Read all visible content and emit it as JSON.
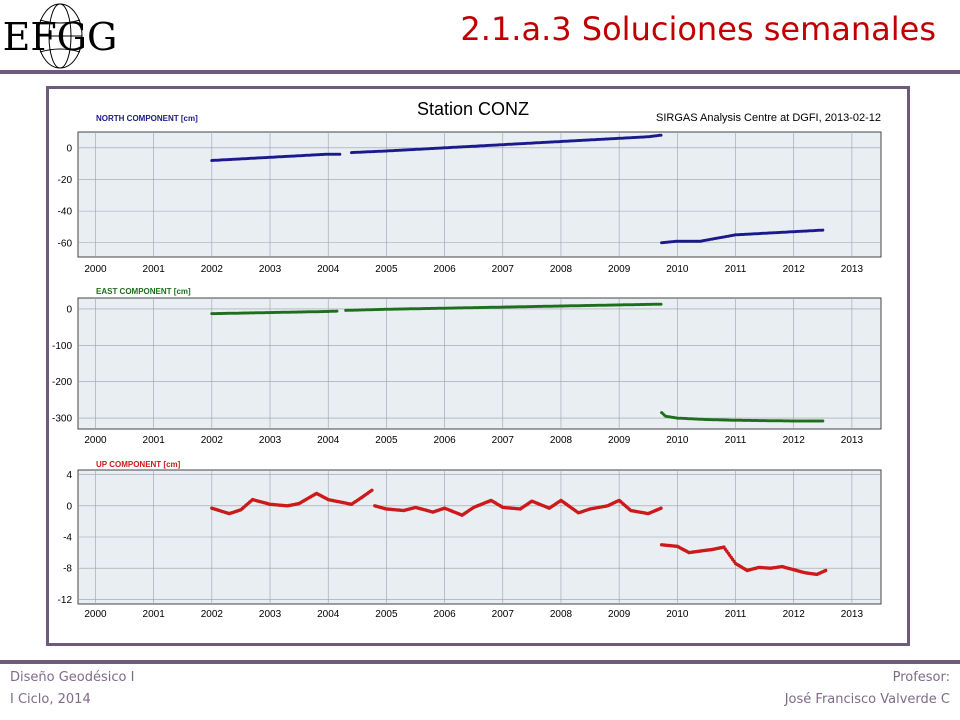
{
  "slide": {
    "title": "2.1.a.3 Soluciones semanales",
    "logo_text": "EFGG",
    "footer_left": [
      "Diseño Geodésico I",
      "I Ciclo, 2014"
    ],
    "footer_right": [
      "Profesor:",
      "José Francisco Valverde C"
    ],
    "colors": {
      "title": "#c00000",
      "rule": "#6e5a7a",
      "footer": "#7f6a8a"
    }
  },
  "chart_data": {
    "title": "Station CONZ",
    "subtitle": "SIRGAS Analysis Centre at DGFI, 2013-02-12",
    "grid": true,
    "panels": [
      {
        "type": "scatter",
        "label": "NORTH COMPONENT [cm]",
        "color": "#1a1a8c",
        "xlim": [
          1999.7,
          2013.5
        ],
        "ylim": [
          -69,
          10
        ],
        "yticks": [
          0,
          -20,
          -40,
          -60
        ],
        "xticks": [
          2000,
          2001,
          2002,
          2003,
          2004,
          2005,
          2006,
          2007,
          2008,
          2009,
          2010,
          2011,
          2012,
          2013
        ],
        "segments": [
          {
            "x": [
              2002.0,
              2002.5,
              2003.0,
              2003.5,
              2004.0,
              2004.2
            ],
            "y": [
              -8,
              -7,
              -6,
              -5,
              -4,
              -4
            ]
          },
          {
            "x": [
              2004.4,
              2005.0,
              2005.5,
              2006.0,
              2006.5,
              2007.0,
              2007.5,
              2008.0,
              2008.5,
              2009.0,
              2009.5,
              2009.72
            ],
            "y": [
              -3,
              -2,
              -1,
              0,
              1,
              2,
              3,
              4,
              5,
              6,
              7,
              8
            ]
          },
          {
            "x": [
              2009.73,
              2010.0,
              2010.4,
              2010.7,
              2011.0,
              2011.5,
              2012.0,
              2012.5
            ],
            "y": [
              -60,
              -59,
              -59,
              -57,
              -55,
              -54,
              -53,
              -52
            ]
          }
        ]
      },
      {
        "type": "scatter",
        "label": "EAST COMPONENT [cm]",
        "color": "#1e6e1e",
        "xlim": [
          1999.7,
          2013.5
        ],
        "ylim": [
          -330,
          30
        ],
        "yticks": [
          0,
          -100,
          -200,
          -300
        ],
        "xticks": [
          2000,
          2001,
          2002,
          2003,
          2004,
          2005,
          2006,
          2007,
          2008,
          2009,
          2010,
          2011,
          2012,
          2013
        ],
        "segments": [
          {
            "x": [
              2002.0,
              2003.0,
              2004.0,
              2004.15
            ],
            "y": [
              -13,
              -10,
              -7,
              -6
            ]
          },
          {
            "x": [
              2004.3,
              2005.0,
              2006.0,
              2007.0,
              2008.0,
              2009.0,
              2009.72
            ],
            "y": [
              -4,
              -1,
              2,
              5,
              8,
              11,
              13
            ]
          },
          {
            "x": [
              2009.73,
              2009.8,
              2010.0,
              2010.5,
              2011.0,
              2011.5,
              2012.0,
              2012.5
            ],
            "y": [
              -285,
              -295,
              -300,
              -304,
              -306,
              -307,
              -308,
              -308
            ]
          }
        ]
      },
      {
        "type": "scatter",
        "label": "UP COMPONENT [cm]",
        "color": "#cc1a1a",
        "xlim": [
          1999.7,
          2013.5
        ],
        "ylim": [
          -12.6,
          4.6
        ],
        "yticks": [
          4,
          0,
          -4,
          -8,
          -12
        ],
        "xticks": [
          2000,
          2001,
          2002,
          2003,
          2004,
          2005,
          2006,
          2007,
          2008,
          2009,
          2010,
          2011,
          2012,
          2013
        ],
        "segments": [
          {
            "x": [
              2002.0,
              2002.3,
              2002.5,
              2002.7,
              2003.0,
              2003.3,
              2003.5,
              2003.8,
              2004.0,
              2004.2,
              2004.4,
              2004.6,
              2004.75
            ],
            "y": [
              -0.3,
              -1.0,
              -0.5,
              0.8,
              0.2,
              0.0,
              0.3,
              1.6,
              0.8,
              0.5,
              0.2,
              1.2,
              2.0
            ]
          },
          {
            "x": [
              2004.8,
              2005.0,
              2005.3,
              2005.5,
              2005.8,
              2006.0,
              2006.3,
              2006.5,
              2006.8,
              2007.0,
              2007.3,
              2007.5,
              2007.8,
              2008.0,
              2008.3,
              2008.5,
              2008.8,
              2009.0,
              2009.2,
              2009.5,
              2009.72
            ],
            "y": [
              0.0,
              -0.4,
              -0.6,
              -0.2,
              -0.8,
              -0.3,
              -1.2,
              -0.2,
              0.7,
              -0.2,
              -0.4,
              0.6,
              -0.3,
              0.7,
              -0.9,
              -0.4,
              0.0,
              0.7,
              -0.6,
              -1.0,
              -0.3
            ]
          },
          {
            "x": [
              2009.73,
              2010.0,
              2010.2,
              2010.4,
              2010.6,
              2010.8,
              2011.0,
              2011.2,
              2011.4,
              2011.6,
              2011.8,
              2012.0,
              2012.2,
              2012.4,
              2012.55
            ],
            "y": [
              -5.0,
              -5.2,
              -6.0,
              -5.8,
              -5.6,
              -5.3,
              -7.4,
              -8.3,
              -7.9,
              -8.0,
              -7.8,
              -8.2,
              -8.6,
              -8.8,
              -8.3
            ]
          }
        ]
      }
    ]
  }
}
